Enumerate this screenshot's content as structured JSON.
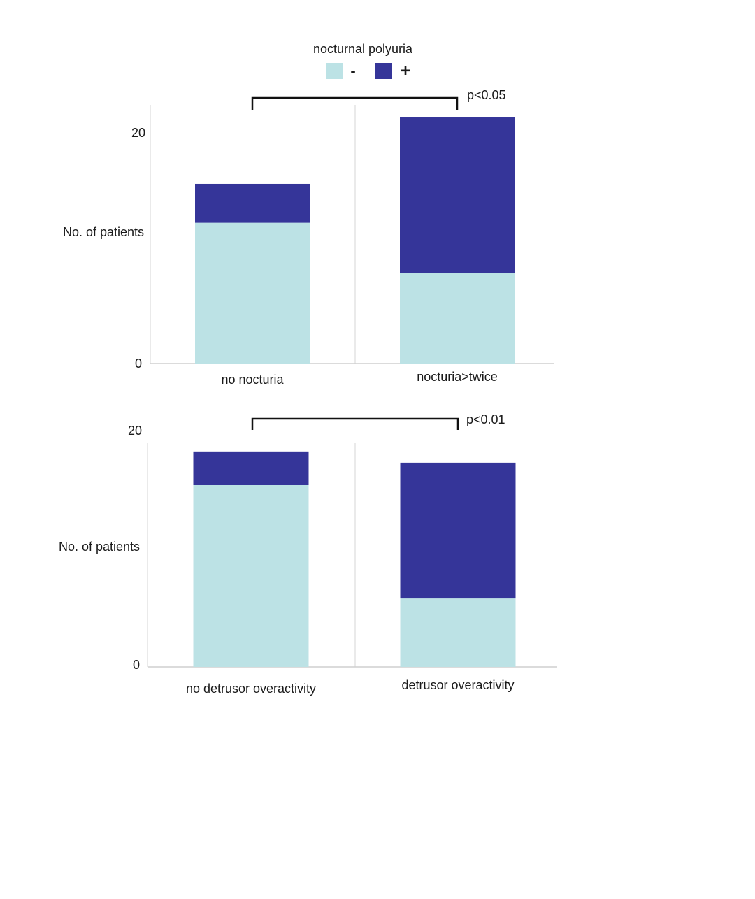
{
  "legend": {
    "title": "nocturnal polyuria",
    "items": [
      {
        "label": "-",
        "color": "#bce2e5"
      },
      {
        "label": "+",
        "color": "#353599"
      }
    ]
  },
  "chart_data": [
    {
      "type": "bar",
      "stacked": true,
      "categories": [
        "no nocturia",
        "nocturia>twice"
      ],
      "series": [
        {
          "name": "-",
          "values": [
            12.3,
            7.9
          ],
          "color": "#bce2e5"
        },
        {
          "name": "+",
          "values": [
            3.4,
            13.6
          ],
          "color": "#353599"
        }
      ],
      "xlabel": "",
      "ylabel": "No. of patients",
      "ylim": [
        0,
        22.6
      ],
      "yticks": [
        0,
        20
      ],
      "grid": false,
      "legend": "top-center",
      "annotation": "p<0.05"
    },
    {
      "type": "bar",
      "stacked": true,
      "categories": [
        "no detrusor overactivity",
        "detrusor overactivity"
      ],
      "series": [
        {
          "name": "-",
          "values": [
            16.2,
            6.1
          ],
          "color": "#bce2e5"
        },
        {
          "name": "+",
          "values": [
            3.0,
            12.1
          ],
          "color": "#353599"
        }
      ],
      "xlabel": "",
      "ylabel": "No. of patients",
      "ylim": [
        0,
        20
      ],
      "yticks": [
        0,
        20
      ],
      "grid": false,
      "legend": "top-center",
      "annotation": "p<0.01"
    }
  ]
}
